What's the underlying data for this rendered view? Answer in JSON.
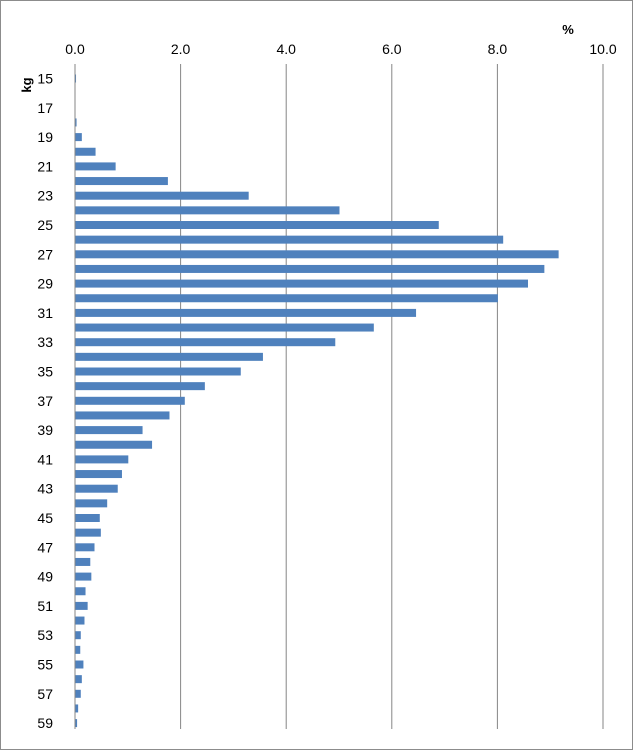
{
  "chart_data": {
    "type": "bar",
    "orientation": "horizontal",
    "title": "",
    "xlabel": "%",
    "ylabel": "kg",
    "xlim": [
      0,
      10
    ],
    "x_ticks": [
      "0.0",
      "2.0",
      "4.0",
      "6.0",
      "8.0",
      "10.0"
    ],
    "x_axis_position": "top",
    "categories": [
      "15",
      "16",
      "17",
      "18",
      "19",
      "20",
      "21",
      "22",
      "23",
      "24",
      "25",
      "26",
      "27",
      "28",
      "29",
      "30",
      "31",
      "32",
      "33",
      "34",
      "35",
      "36",
      "37",
      "38",
      "39",
      "40",
      "41",
      "42",
      "43",
      "44",
      "45",
      "46",
      "47",
      "48",
      "49",
      "50",
      "51",
      "52",
      "53",
      "54",
      "55",
      "56",
      "57",
      "58",
      "59"
    ],
    "y_tick_labels": [
      "15",
      "17",
      "19",
      "21",
      "23",
      "25",
      "27",
      "29",
      "31",
      "33",
      "35",
      "37",
      "39",
      "41",
      "43",
      "45",
      "47",
      "49",
      "51",
      "53",
      "55",
      "57",
      "59"
    ],
    "values": [
      0.01,
      0.0,
      0.0,
      0.02,
      0.12,
      0.38,
      0.76,
      1.75,
      3.28,
      5.0,
      6.88,
      8.1,
      9.15,
      8.88,
      8.57,
      8.0,
      6.45,
      5.65,
      4.92,
      3.55,
      3.13,
      2.45,
      2.07,
      1.78,
      1.27,
      1.45,
      1.0,
      0.88,
      0.8,
      0.6,
      0.46,
      0.48,
      0.36,
      0.28,
      0.3,
      0.19,
      0.23,
      0.17,
      0.1,
      0.09,
      0.15,
      0.12,
      0.1,
      0.05,
      0.03
    ],
    "grid": true,
    "legend": "none",
    "bar_color": "#4f81bd",
    "grid_color": "#868686"
  }
}
